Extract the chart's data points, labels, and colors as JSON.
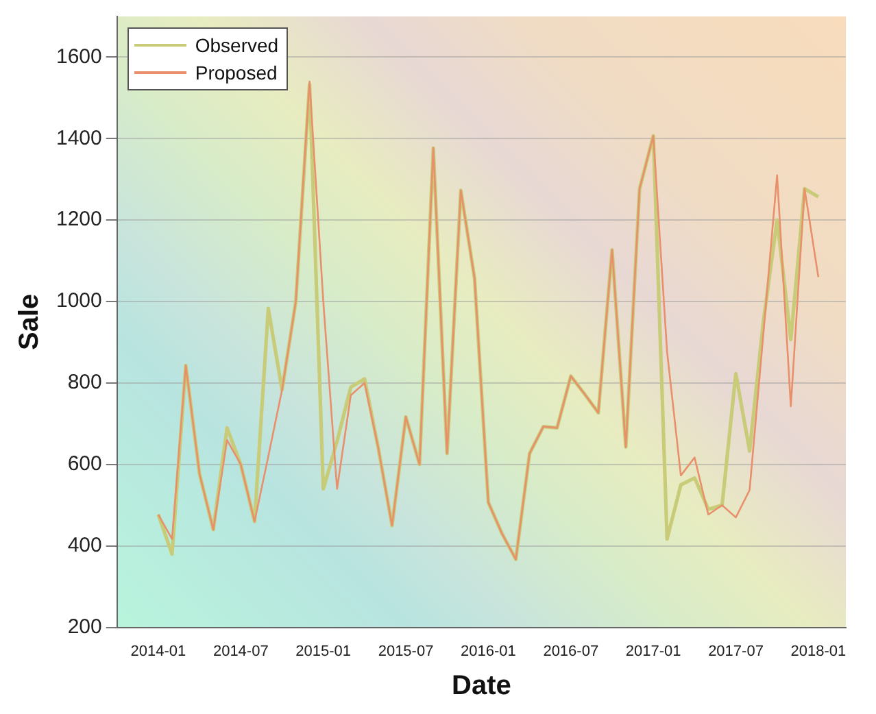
{
  "chart_data": {
    "type": "line",
    "xlabel": "Date",
    "ylabel": "Sale",
    "x": [
      "2014-01",
      "2014-02",
      "2014-03",
      "2014-04",
      "2014-05",
      "2014-06",
      "2014-07",
      "2014-08",
      "2014-09",
      "2014-10",
      "2014-11",
      "2014-12",
      "2015-01",
      "2015-02",
      "2015-03",
      "2015-04",
      "2015-05",
      "2015-06",
      "2015-07",
      "2015-08",
      "2015-09",
      "2015-10",
      "2015-11",
      "2015-12",
      "2016-01",
      "2016-02",
      "2016-03",
      "2016-04",
      "2016-05",
      "2016-06",
      "2016-07",
      "2016-08",
      "2016-09",
      "2016-10",
      "2016-11",
      "2016-12",
      "2017-01",
      "2017-02",
      "2017-03",
      "2017-04",
      "2017-05",
      "2017-06",
      "2017-07",
      "2017-08",
      "2017-09",
      "2017-10",
      "2017-11",
      "2017-12",
      "2018-01"
    ],
    "series": [
      {
        "name": "Observed",
        "color": "#c8cc78",
        "values": [
          477,
          380,
          843,
          577,
          440,
          690,
          600,
          460,
          983,
          783,
          1000,
          1533,
          540,
          657,
          790,
          810,
          640,
          450,
          717,
          600,
          1377,
          627,
          1273,
          1057,
          507,
          430,
          367,
          627,
          693,
          690,
          817,
          773,
          727,
          1127,
          643,
          1277,
          1407,
          417,
          550,
          567,
          490,
          500,
          823,
          633,
          950,
          1200,
          907,
          1277,
          1257
        ]
      },
      {
        "name": "Proposed",
        "color": "#e8906c",
        "values": [
          477,
          417,
          843,
          577,
          440,
          660,
          600,
          460,
          620,
          783,
          1000,
          1540,
          1000,
          540,
          770,
          800,
          640,
          450,
          717,
          600,
          1377,
          627,
          1273,
          1057,
          507,
          430,
          367,
          627,
          693,
          690,
          817,
          773,
          727,
          1127,
          643,
          1277,
          1407,
          877,
          573,
          617,
          477,
          500,
          470,
          537,
          920,
          1310,
          743,
          1277,
          1060
        ]
      }
    ],
    "xlim": [
      "2013-10",
      "2018-03"
    ],
    "xticks": [
      "2014-01",
      "2014-07",
      "2015-01",
      "2015-07",
      "2016-01",
      "2016-07",
      "2017-01",
      "2017-07",
      "2018-01"
    ],
    "ylim": [
      200,
      1700
    ],
    "yticks": [
      200,
      400,
      600,
      800,
      1000,
      1200,
      1400,
      1600
    ],
    "grid": "y",
    "legend": "top left",
    "marker": "none",
    "line_style": "solid"
  }
}
